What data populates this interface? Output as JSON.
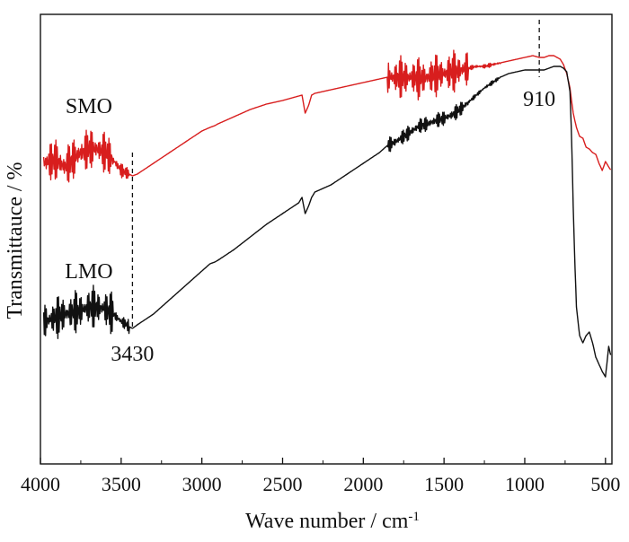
{
  "chart_data": {
    "type": "line",
    "title": "",
    "xlabel": "Wave number / cm",
    "xlabel_superscript": "-1",
    "ylabel": "Transmittauce / %",
    "xlim": [
      4000,
      460
    ],
    "x_reversed": true,
    "ylim": [
      0,
      100
    ],
    "y_ticks_labeled": false,
    "grid": false,
    "x_ticks": [
      4000,
      3500,
      3000,
      2500,
      2000,
      1500,
      1000,
      500
    ],
    "x_tick_labels": [
      "4000",
      "3500",
      "3000",
      "2500",
      "2000",
      "1500",
      "1000",
      "500"
    ],
    "series": [
      {
        "name": "SMO",
        "color": "#d81e1e",
        "x": [
          3980,
          3900,
          3850,
          3800,
          3750,
          3700,
          3650,
          3600,
          3550,
          3500,
          3450,
          3430,
          3400,
          3300,
          3200,
          3100,
          3000,
          2950,
          2920,
          2900,
          2800,
          2700,
          2600,
          2500,
          2420,
          2380,
          2360,
          2340,
          2320,
          2300,
          2200,
          2100,
          2000,
          1900,
          1850,
          1800,
          1750,
          1700,
          1650,
          1600,
          1550,
          1500,
          1450,
          1400,
          1350,
          1300,
          1250,
          1200,
          1150,
          1100,
          1050,
          1000,
          950,
          910,
          880,
          850,
          820,
          800,
          780,
          760,
          740,
          720,
          700,
          680,
          660,
          640,
          620,
          600,
          580,
          560,
          540,
          520,
          500,
          480,
          465
        ],
        "y": [
          72,
          73,
          71,
          73,
          75,
          76,
          76,
          75,
          73,
          70,
          69,
          68.5,
          69,
          72,
          75,
          78,
          81,
          82,
          82.5,
          83,
          85,
          87,
          88.5,
          89.5,
          90.5,
          91,
          86,
          88,
          91,
          91.5,
          92.5,
          93.5,
          94.5,
          95.5,
          96,
          96,
          96,
          96,
          95.5,
          96,
          96.5,
          97,
          97.5,
          98,
          98.5,
          99,
          99,
          99.5,
          100,
          100.5,
          101,
          101.5,
          102,
          101.5,
          101.5,
          102,
          102,
          101.5,
          101,
          99.5,
          97,
          93,
          86,
          82,
          79.5,
          79,
          76.5,
          76,
          75,
          74.5,
          72,
          70,
          72.5,
          71,
          70
        ]
      },
      {
        "name": "LMO",
        "color": "#111111",
        "x": [
          3980,
          3900,
          3850,
          3800,
          3750,
          3700,
          3650,
          3600,
          3550,
          3500,
          3450,
          3430,
          3400,
          3300,
          3200,
          3100,
          3000,
          2950,
          2920,
          2900,
          2800,
          2700,
          2600,
          2500,
          2400,
          2380,
          2360,
          2340,
          2320,
          2300,
          2200,
          2100,
          2000,
          1900,
          1850,
          1800,
          1750,
          1700,
          1650,
          1600,
          1550,
          1500,
          1450,
          1400,
          1350,
          1300,
          1250,
          1200,
          1150,
          1100,
          1050,
          1000,
          950,
          910,
          880,
          850,
          820,
          800,
          780,
          760,
          740,
          720,
          710,
          700,
          690,
          680,
          660,
          640,
          620,
          600,
          580,
          560,
          540,
          520,
          500,
          480,
          465
        ],
        "y": [
          28,
          29,
          30,
          30.5,
          31,
          32,
          32,
          31.5,
          30,
          28,
          26.5,
          26,
          27,
          30,
          34,
          38,
          42,
          44,
          44.5,
          45,
          48,
          51.5,
          55,
          58,
          61,
          62.5,
          58,
          60,
          62.5,
          64,
          66,
          69,
          72,
          75,
          77,
          78,
          79.5,
          81,
          82.5,
          83,
          84,
          84.5,
          85.5,
          87,
          89,
          91,
          93,
          94.5,
          96,
          97,
          97.5,
          98,
          98,
          98,
          98,
          98.5,
          99,
          99,
          99,
          98.5,
          97.5,
          92,
          80,
          60,
          45,
          32,
          24,
          22,
          24,
          25,
          22,
          18,
          16,
          14,
          12.5,
          21,
          18
        ]
      }
    ],
    "annotations": [
      {
        "text": "SMO",
        "x": 3700,
        "y": 86
      },
      {
        "text": "LMO",
        "x": 3700,
        "y": 40
      },
      {
        "text": "3430",
        "x": 3430,
        "y": 17
      },
      {
        "text": "910",
        "x": 910,
        "y": 88
      }
    ],
    "reference_lines": [
      {
        "x": 3430,
        "y_from": 26,
        "y_to": 75
      },
      {
        "x": 910,
        "y_from": 96,
        "y_to": 112
      }
    ]
  }
}
